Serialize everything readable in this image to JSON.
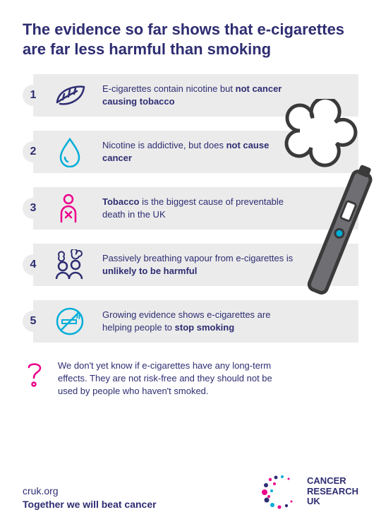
{
  "title": "The evidence so far shows that e-cigarettes are far less harmful than smoking",
  "colors": {
    "primary": "#2e2d72",
    "barBg": "#ebebeb",
    "pink": "#ec008b",
    "cyan": "#00aed8",
    "black": "#3a3a3a"
  },
  "items": [
    {
      "num": "1",
      "icon": "leaf",
      "iconColor": "#2e2d72",
      "pre": "E-cigarettes contain nicotine but",
      "bold": "not cancer causing tobacco",
      "post": ""
    },
    {
      "num": "2",
      "icon": "drop",
      "iconColor": "#00aed8",
      "pre": "Nicotine is addictive, but does",
      "bold": "not cause cancer",
      "post": ""
    },
    {
      "num": "3",
      "icon": "person-x",
      "iconColor": "#ec008b",
      "pre": "",
      "bold": "Tobacco",
      "post": " is the biggest cause of preventable death in the UK"
    },
    {
      "num": "4",
      "icon": "people-vape",
      "iconColor": "#2e2d72",
      "pre": "Passively breathing vapour from e-cigarettes is ",
      "bold": "unlikely to be harmful",
      "post": ""
    },
    {
      "num": "5",
      "icon": "no-smoking",
      "iconColor": "#00aed8",
      "pre": "Growing evidence shows e-cigarettes are helping people to ",
      "bold": "stop smoking",
      "post": ""
    }
  ],
  "caveat": "We don't yet know if e-cigarettes have any long-term effects. They are not risk-free and they should not be used by people who haven't smoked.",
  "footer": {
    "url": "cruk.org",
    "tagline": "Together we will beat cancer",
    "logoLine1": "CANCER",
    "logoLine2": "RESEARCH",
    "logoLine3": "UK"
  }
}
